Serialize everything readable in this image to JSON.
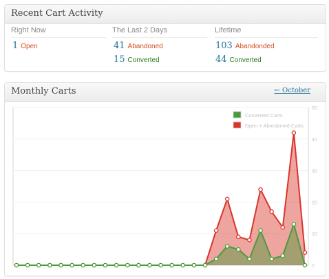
{
  "recent": {
    "title": "Recent Cart Activity",
    "columns": [
      {
        "label": "Right Now",
        "rows": [
          {
            "value": "1",
            "label": "Open",
            "color": "#d54e21"
          }
        ]
      },
      {
        "label": "The Last 2 Days",
        "rows": [
          {
            "value": "41",
            "label": "Abandoned",
            "color": "#d54e21"
          },
          {
            "value": "15",
            "label": "Converted",
            "color": "#2b7e17"
          }
        ]
      },
      {
        "label": "Lifetime",
        "rows": [
          {
            "value": "103",
            "label": "Abandonded",
            "color": "#d54e21"
          },
          {
            "value": "44",
            "label": "Converted",
            "color": "#2b7e17"
          }
        ]
      }
    ]
  },
  "monthly": {
    "title": "Monthly Carts",
    "nav_link": "← October"
  },
  "chart_data": {
    "type": "area",
    "x": [
      1,
      2,
      3,
      4,
      5,
      6,
      7,
      8,
      9,
      10,
      11,
      12,
      13,
      14,
      15,
      16,
      17,
      18,
      19,
      20,
      21,
      22,
      23,
      24,
      25,
      26,
      27
    ],
    "series": [
      {
        "name": "Converted Carts",
        "color": "#4a9a3a",
        "values": [
          0,
          0,
          0,
          0,
          0,
          0,
          0,
          0,
          0,
          0,
          0,
          0,
          0,
          0,
          0,
          0,
          0,
          0,
          2,
          6,
          5,
          2,
          11,
          2,
          3,
          13,
          0
        ]
      },
      {
        "name": "Open + Abandoned Carts",
        "color": "#d9352b",
        "values": [
          0,
          0,
          0,
          0,
          0,
          0,
          0,
          0,
          0,
          0,
          0,
          0,
          0,
          0,
          0,
          0,
          0,
          0,
          11,
          21,
          9,
          8,
          24,
          17,
          12,
          42,
          4
        ]
      }
    ],
    "yticks": [
      0,
      10,
      20,
      30,
      40,
      50
    ],
    "ylim": [
      0,
      50
    ],
    "grid": true,
    "legend_position": "top-right"
  }
}
